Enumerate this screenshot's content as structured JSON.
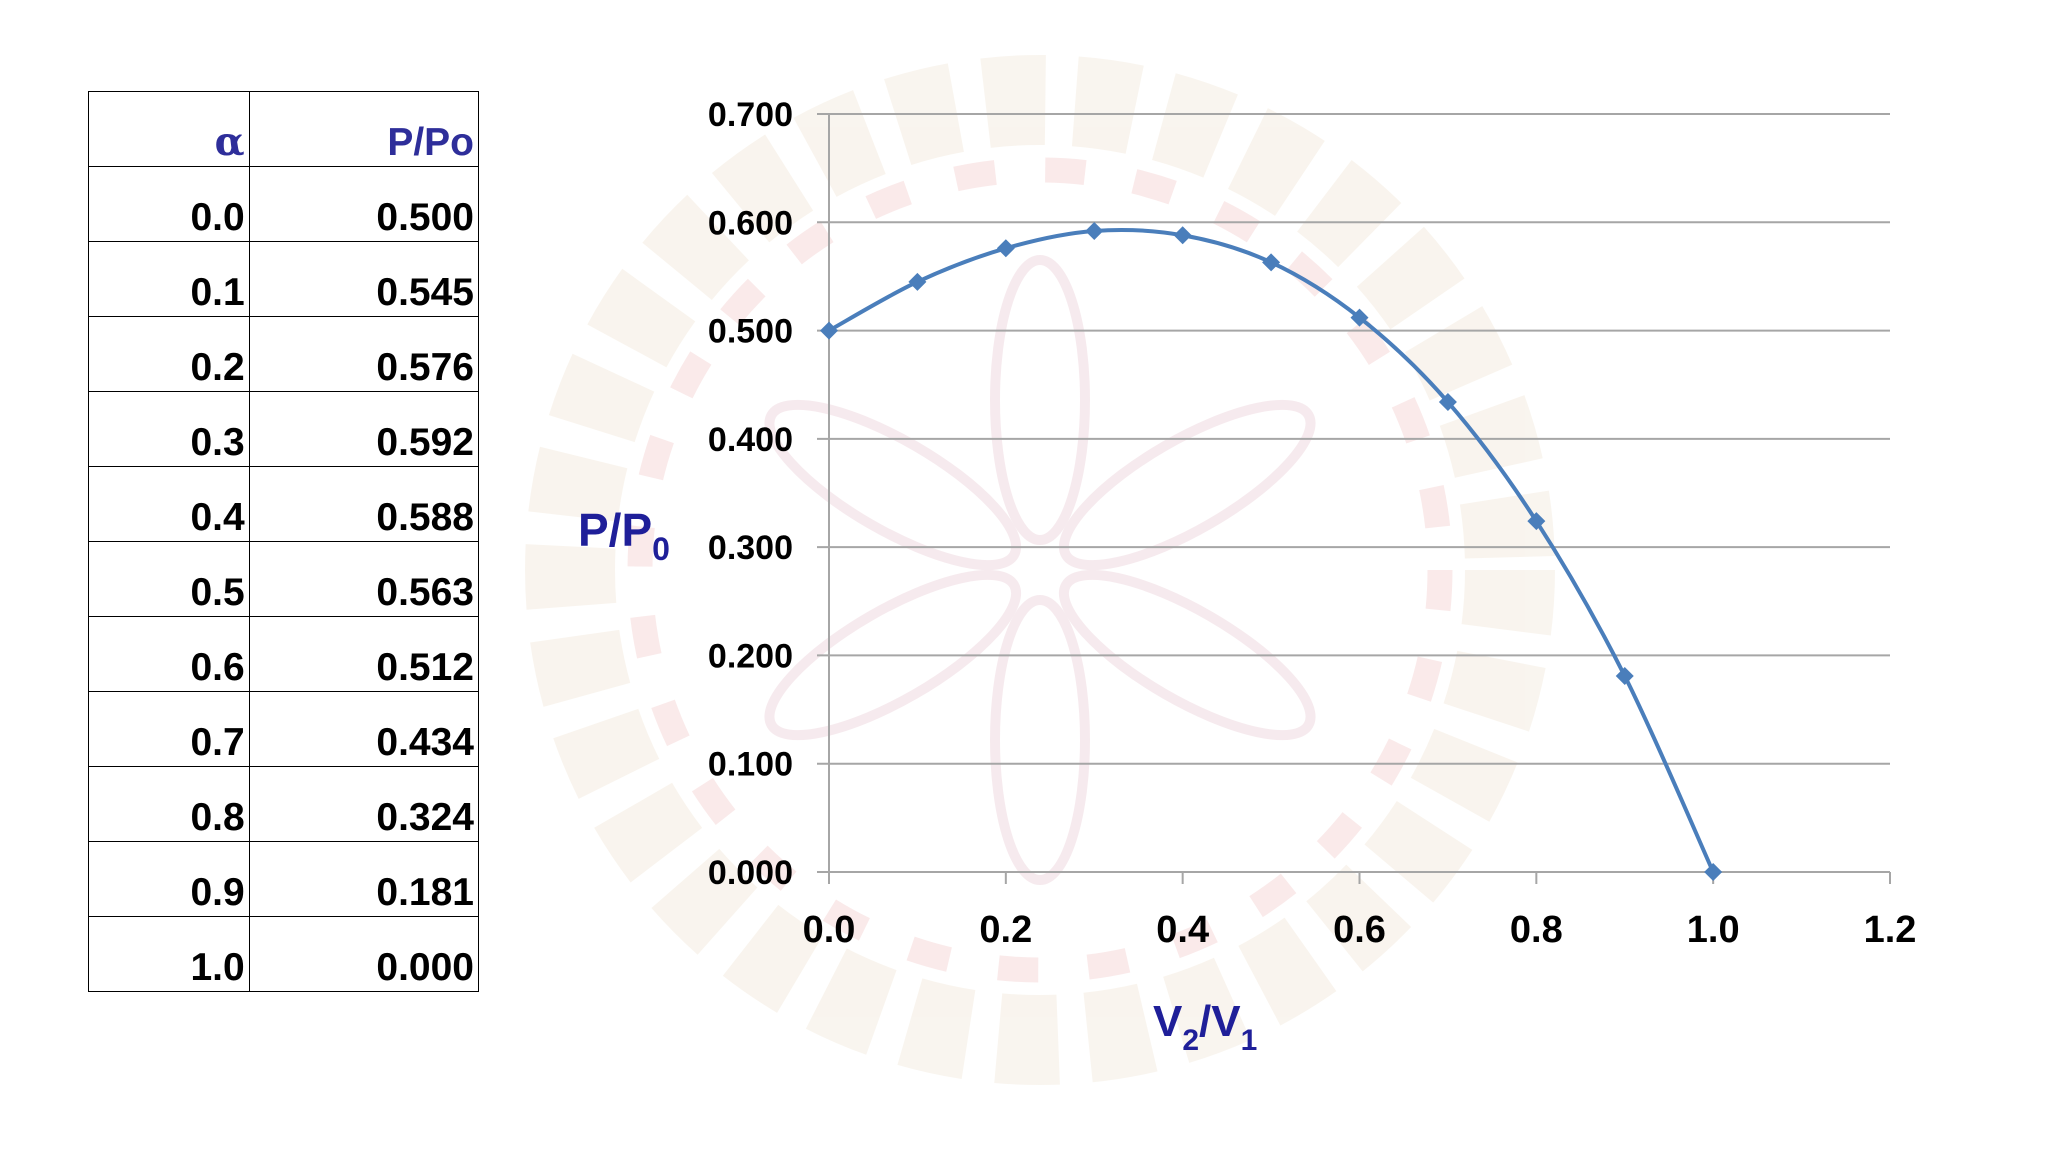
{
  "table": {
    "headers": [
      "α",
      "P/Po"
    ],
    "rows": [
      [
        "0.0",
        "0.500"
      ],
      [
        "0.1",
        "0.545"
      ],
      [
        "0.2",
        "0.576"
      ],
      [
        "0.3",
        "0.592"
      ],
      [
        "0.4",
        "0.588"
      ],
      [
        "0.5",
        "0.563"
      ],
      [
        "0.6",
        "0.512"
      ],
      [
        "0.7",
        "0.434"
      ],
      [
        "0.8",
        "0.324"
      ],
      [
        "0.9",
        "0.181"
      ],
      [
        "1.0",
        "0.000"
      ]
    ]
  },
  "chart_data": {
    "type": "line",
    "title": "",
    "xlabel": {
      "main": "V",
      "sub1": "2",
      "mid": "/V",
      "sub2": "1"
    },
    "ylabel": {
      "main": "P/P",
      "sub": "0"
    },
    "xlim": [
      0,
      1.2
    ],
    "ylim": [
      0,
      0.7
    ],
    "x_ticks": [
      "0.0",
      "0.2",
      "0.4",
      "0.6",
      "0.8",
      "1.0",
      "1.2"
    ],
    "y_ticks": [
      "0.000",
      "0.100",
      "0.200",
      "0.300",
      "0.400",
      "0.500",
      "0.600",
      "0.700"
    ],
    "grid": "horizontal",
    "legend": "none",
    "series": [
      {
        "marker": "diamond",
        "color": "#4a7ebb",
        "x": [
          0.0,
          0.1,
          0.2,
          0.3,
          0.4,
          0.5,
          0.6,
          0.7,
          0.8,
          0.9,
          1.0
        ],
        "y": [
          0.5,
          0.545,
          0.576,
          0.592,
          0.588,
          0.563,
          0.512,
          0.434,
          0.324,
          0.181,
          0.0
        ]
      }
    ]
  },
  "colors": {
    "axis_title": "#1f1f99",
    "table_header": "#2e2e9a",
    "series": "#4a7ebb",
    "gridline": "#a6a6a6"
  }
}
